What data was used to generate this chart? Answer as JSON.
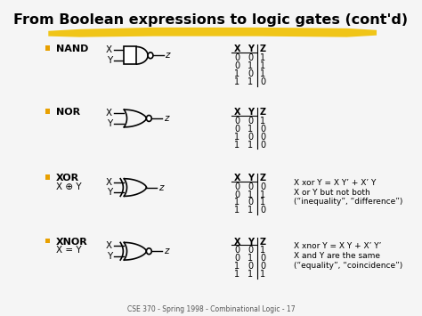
{
  "title": "From Boolean expressions to logic gates (cont'd)",
  "background_color": "#f5f5f5",
  "title_color": "#000000",
  "title_fontsize": 11.5,
  "highlight_color": "#f0c000",
  "bullet_color": "#e8a000",
  "footer": "CSE 370 - Spring 1998 - Combinational Logic - 17",
  "gate_rows": [
    {
      "type": "nand",
      "label": "NAND",
      "sublabel": null,
      "truth_table": [
        [
          "0",
          "0",
          "1"
        ],
        [
          "0",
          "1",
          "1"
        ],
        [
          "1",
          "0",
          "1"
        ],
        [
          "1",
          "1",
          "0"
        ]
      ],
      "extra": null
    },
    {
      "type": "nor",
      "label": "NOR",
      "sublabel": null,
      "truth_table": [
        [
          "0",
          "0",
          "1"
        ],
        [
          "0",
          "1",
          "0"
        ],
        [
          "1",
          "0",
          "0"
        ],
        [
          "1",
          "1",
          "0"
        ]
      ],
      "extra": null
    },
    {
      "type": "xor",
      "label": "XOR",
      "sublabel": "X ⊕ Y",
      "truth_table": [
        [
          "0",
          "0",
          "0"
        ],
        [
          "0",
          "1",
          "1"
        ],
        [
          "1",
          "0",
          "1"
        ],
        [
          "1",
          "1",
          "0"
        ]
      ],
      "extra": [
        "X xor Y = X Y’ + X’ Y",
        "X or Y but not both",
        "(“inequality”, “difference”)"
      ]
    },
    {
      "type": "xnor",
      "label": "XNOR",
      "sublabel": "X = Y",
      "truth_table": [
        [
          "0",
          "0",
          "1"
        ],
        [
          "0",
          "1",
          "0"
        ],
        [
          "1",
          "0",
          "0"
        ],
        [
          "1",
          "1",
          "1"
        ]
      ],
      "extra": [
        "X xnor Y = X Y + X’ Y’",
        "X and Y are the same",
        "(“equality”, “coincidence”)"
      ]
    }
  ]
}
